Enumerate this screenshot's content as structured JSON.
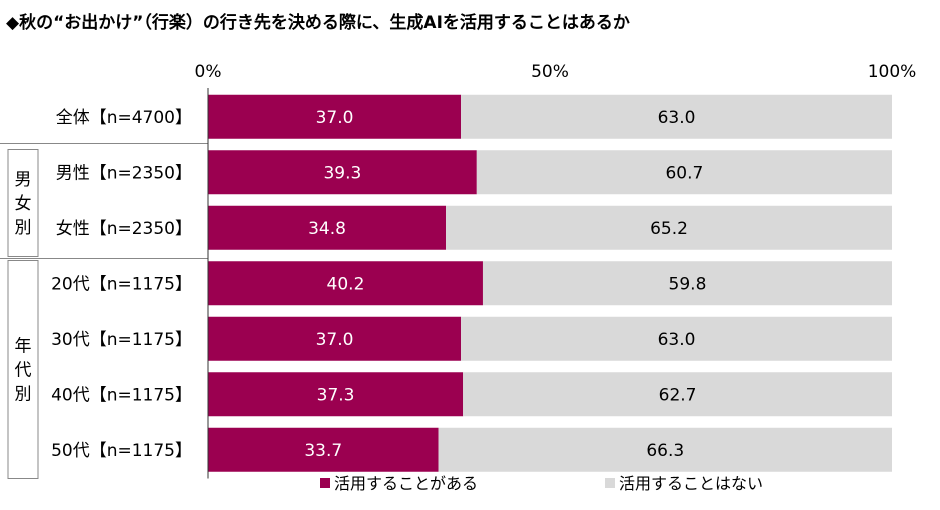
{
  "chart_data": {
    "type": "bar",
    "orientation": "horizontal",
    "stacked": true,
    "percent": true,
    "title": "◆秋の“お出かけ”（行楽）の行き先を決める際に、生成AIを活用することはあるか",
    "ticks": [
      "0%",
      "50%",
      "100%"
    ],
    "categories": [
      "全体【n=4700】",
      "男性【n=2350】",
      "女性【n=2350】",
      "20代【n=1175】",
      "30代【n=1175】",
      "40代【n=1175】",
      "50代【n=1175】"
    ],
    "groups": [
      {
        "label": "男女別",
        "rows": [
          1,
          2
        ]
      },
      {
        "label": "年代別",
        "rows": [
          3,
          4,
          5,
          6
        ]
      }
    ],
    "series": [
      {
        "name": "活用することがある",
        "color": "#9b0050",
        "values": [
          37.0,
          39.3,
          34.8,
          40.2,
          37.0,
          37.3,
          33.7
        ]
      },
      {
        "name": "活用することはない",
        "color": "#d9d9d9",
        "values": [
          63.0,
          60.7,
          65.2,
          59.8,
          63.0,
          62.7,
          66.3
        ]
      }
    ],
    "xlim": [
      0,
      100
    ],
    "grid": false,
    "legend_position": "bottom"
  }
}
